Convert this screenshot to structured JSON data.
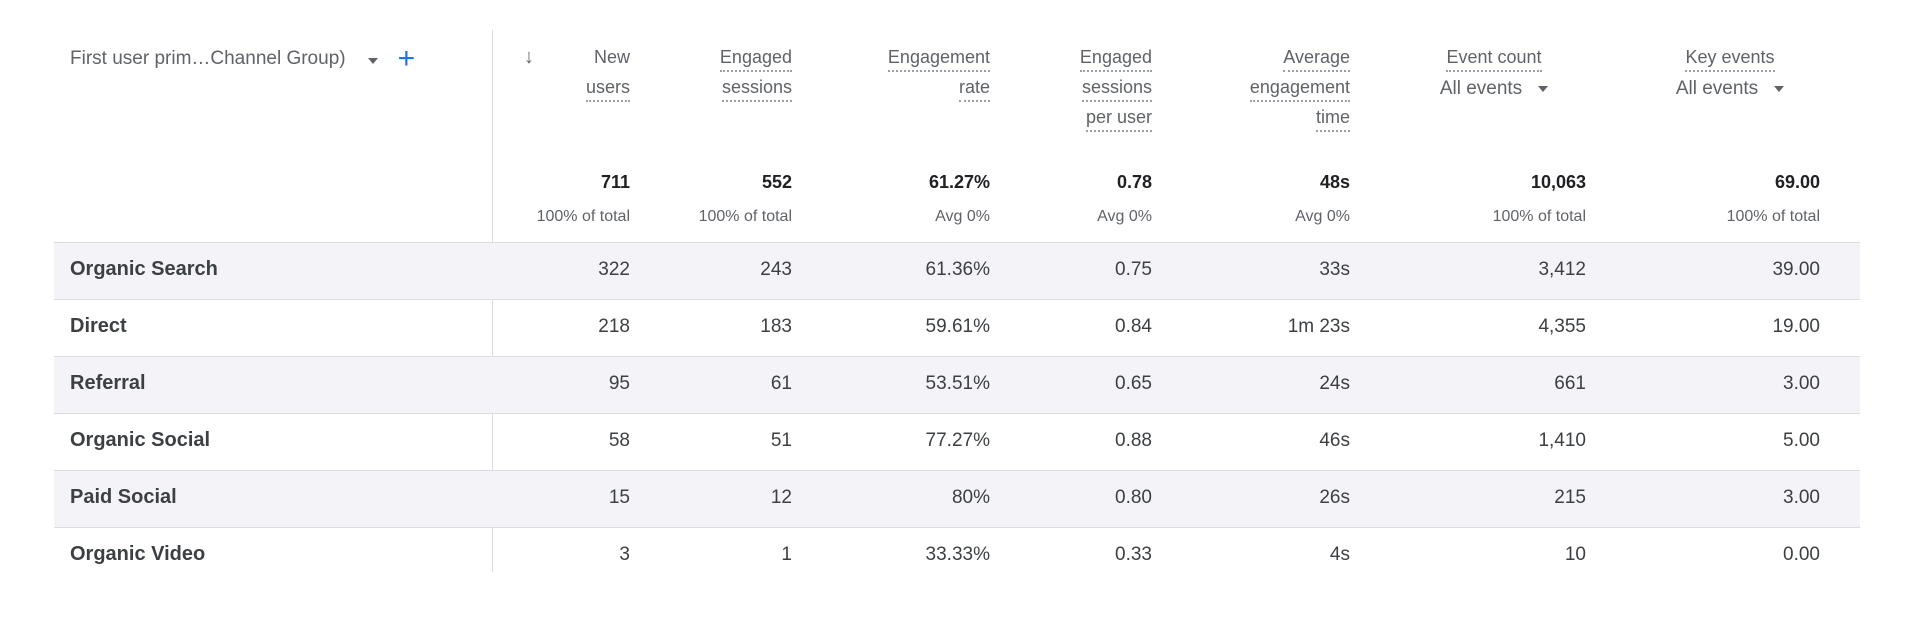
{
  "dimension": {
    "title": "First user prim…Channel Group)"
  },
  "columns": [
    {
      "line1": "New",
      "line2": "users",
      "line3": "",
      "total": "711",
      "total_sub": "100% of total"
    },
    {
      "line1": "Engaged",
      "line2": "sessions",
      "line3": "",
      "total": "552",
      "total_sub": "100% of total"
    },
    {
      "line1": "Engagement",
      "line2": "rate",
      "line3": "",
      "total": "61.27%",
      "total_sub": "Avg 0%"
    },
    {
      "line1": "Engaged",
      "line2": "sessions",
      "line3": "per user",
      "total": "0.78",
      "total_sub": "Avg 0%"
    },
    {
      "line1": "Average",
      "line2": "engagement",
      "line3": "time",
      "total": "48s",
      "total_sub": "Avg 0%"
    },
    {
      "line1": "Event count",
      "selector": "All events",
      "total": "10,063",
      "total_sub": "100% of total"
    },
    {
      "line1": "Key events",
      "selector": "All events",
      "total": "69.00",
      "total_sub": "100% of total"
    }
  ],
  "rows": [
    {
      "name": "Organic Search",
      "values": [
        "322",
        "243",
        "61.36%",
        "0.75",
        "33s",
        "3,412",
        "39.00"
      ]
    },
    {
      "name": "Direct",
      "values": [
        "218",
        "183",
        "59.61%",
        "0.84",
        "1m 23s",
        "4,355",
        "19.00"
      ]
    },
    {
      "name": "Referral",
      "values": [
        "95",
        "61",
        "53.51%",
        "0.65",
        "24s",
        "661",
        "3.00"
      ]
    },
    {
      "name": "Organic Social",
      "values": [
        "58",
        "51",
        "77.27%",
        "0.88",
        "46s",
        "1,410",
        "5.00"
      ]
    },
    {
      "name": "Paid Social",
      "values": [
        "15",
        "12",
        "80%",
        "0.80",
        "26s",
        "215",
        "3.00"
      ]
    },
    {
      "name": "Organic Video",
      "values": [
        "3",
        "1",
        "33.33%",
        "0.33",
        "4s",
        "10",
        "0.00"
      ]
    }
  ]
}
